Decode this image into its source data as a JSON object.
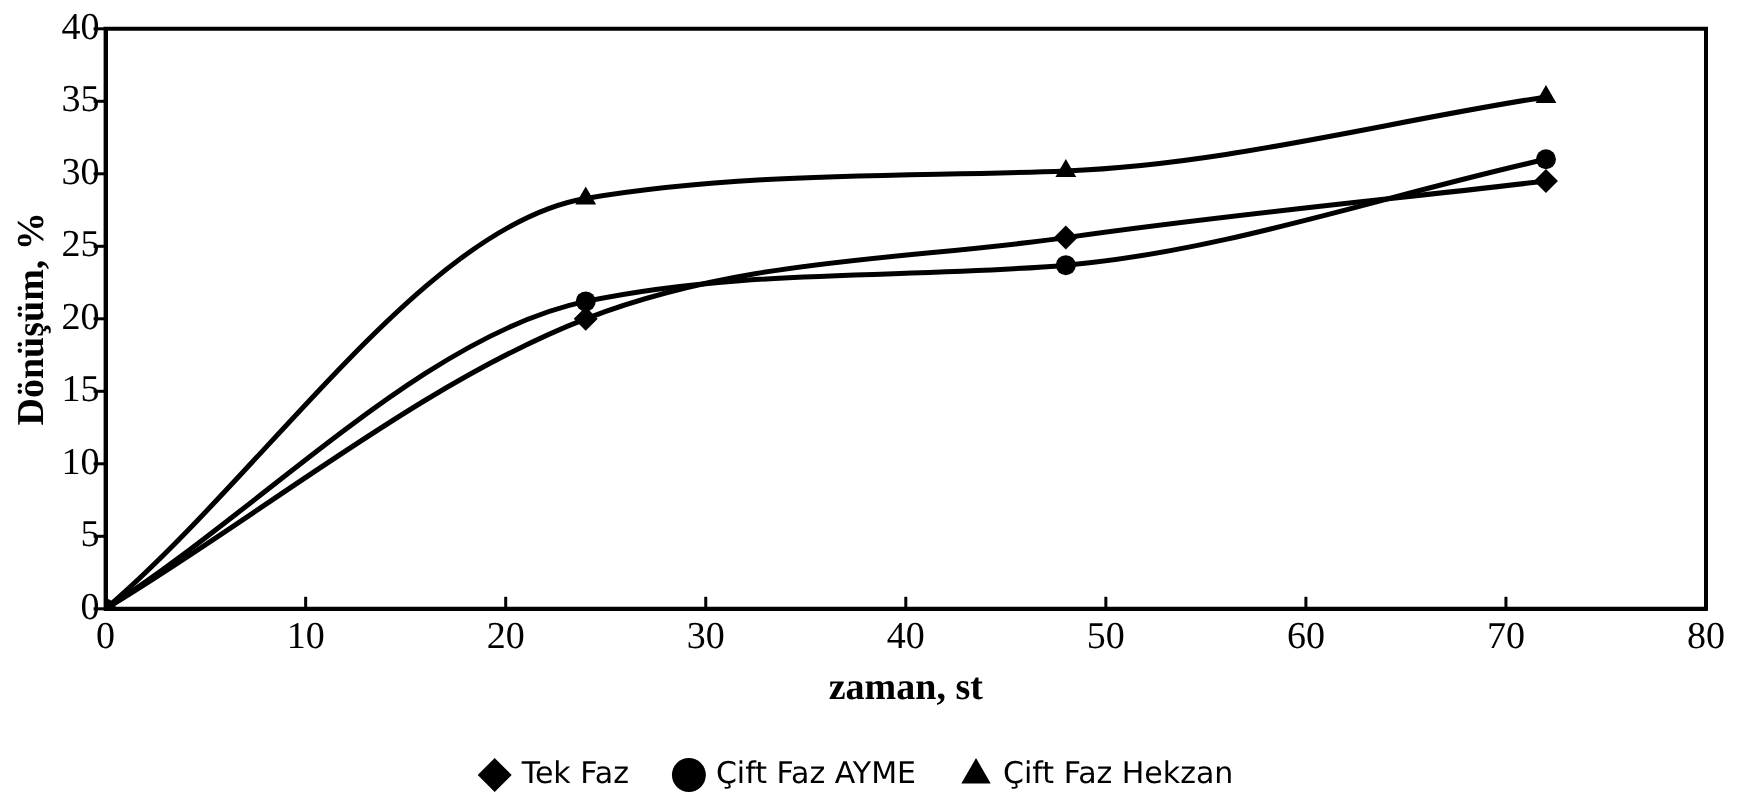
{
  "chart_data": {
    "type": "line",
    "xlabel": "zaman, st",
    "ylabel": "Dönüşüm, %",
    "x": [
      0,
      24,
      48,
      72
    ],
    "series": [
      {
        "name": "Tek Faz",
        "color": "#000000",
        "marker": "diamond",
        "values": [
          0,
          20.0,
          25.6,
          29.5
        ]
      },
      {
        "name": "Çift Faz AYME",
        "color": "#000000",
        "marker": "circle",
        "values": [
          0,
          21.2,
          23.7,
          31.0
        ]
      },
      {
        "name": "Çift Faz Hekzan",
        "color": "#000000",
        "marker": "triangle",
        "values": [
          0,
          28.3,
          30.2,
          35.3
        ]
      }
    ],
    "xlim": [
      0,
      80
    ],
    "xticks": [
      0,
      10,
      20,
      30,
      40,
      50,
      60,
      70,
      80
    ],
    "ylim": [
      0,
      40
    ],
    "yticks": [
      0,
      5,
      10,
      15,
      20,
      25,
      30,
      35,
      40
    ],
    "grid": false,
    "legend": "bottom",
    "line_style": "solid"
  }
}
